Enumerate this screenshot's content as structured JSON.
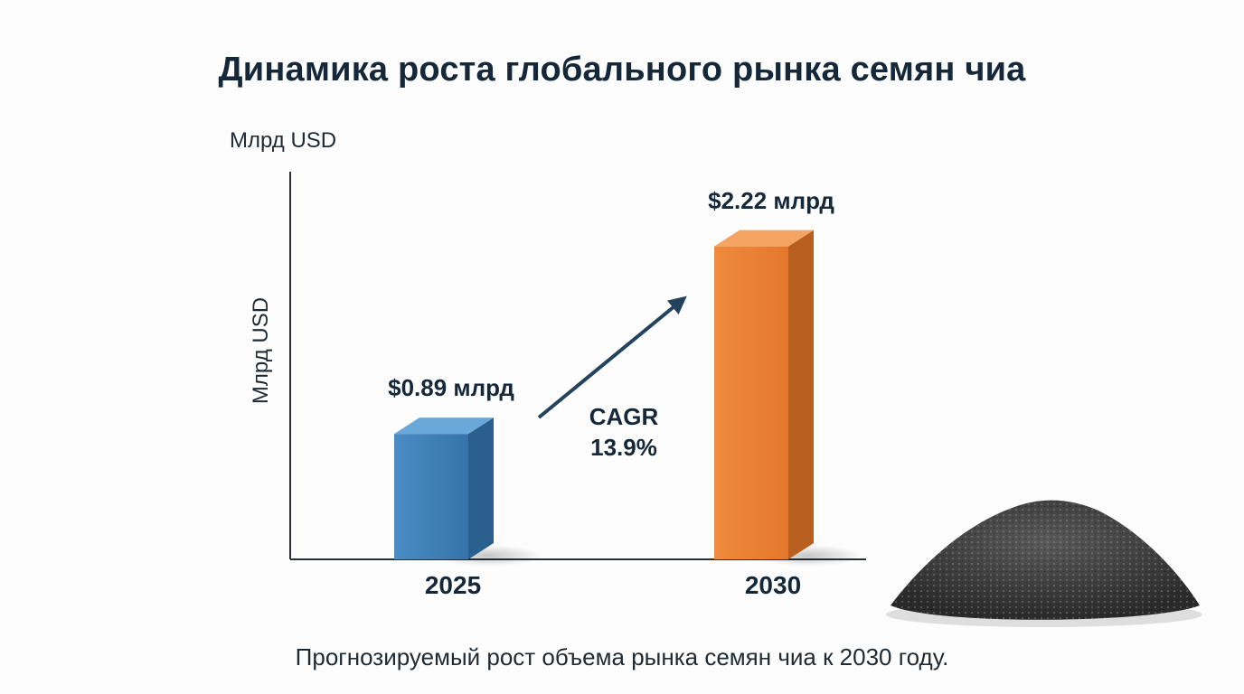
{
  "title": "Динамика роста глобального рынка семян чиа",
  "caption": "Прогнозируемый рост объема рынка семян чиа к 2030 году.",
  "chart_data": {
    "type": "bar",
    "title": "Динамика роста глобального рынка семян чиа",
    "ylabel": "Млрд USD",
    "ylabel_top": "Млрд USD",
    "categories": [
      "2025",
      "2030"
    ],
    "values": [
      0.89,
      2.22
    ],
    "value_labels": [
      "$0.89 млрд",
      "$2.22 млрд"
    ],
    "colors": [
      "#3b7db4",
      "#e97f34"
    ],
    "ylim": [
      0,
      2.75
    ],
    "grid": false,
    "annotation": {
      "line1": "CAGR",
      "line2": "13.9%"
    }
  }
}
